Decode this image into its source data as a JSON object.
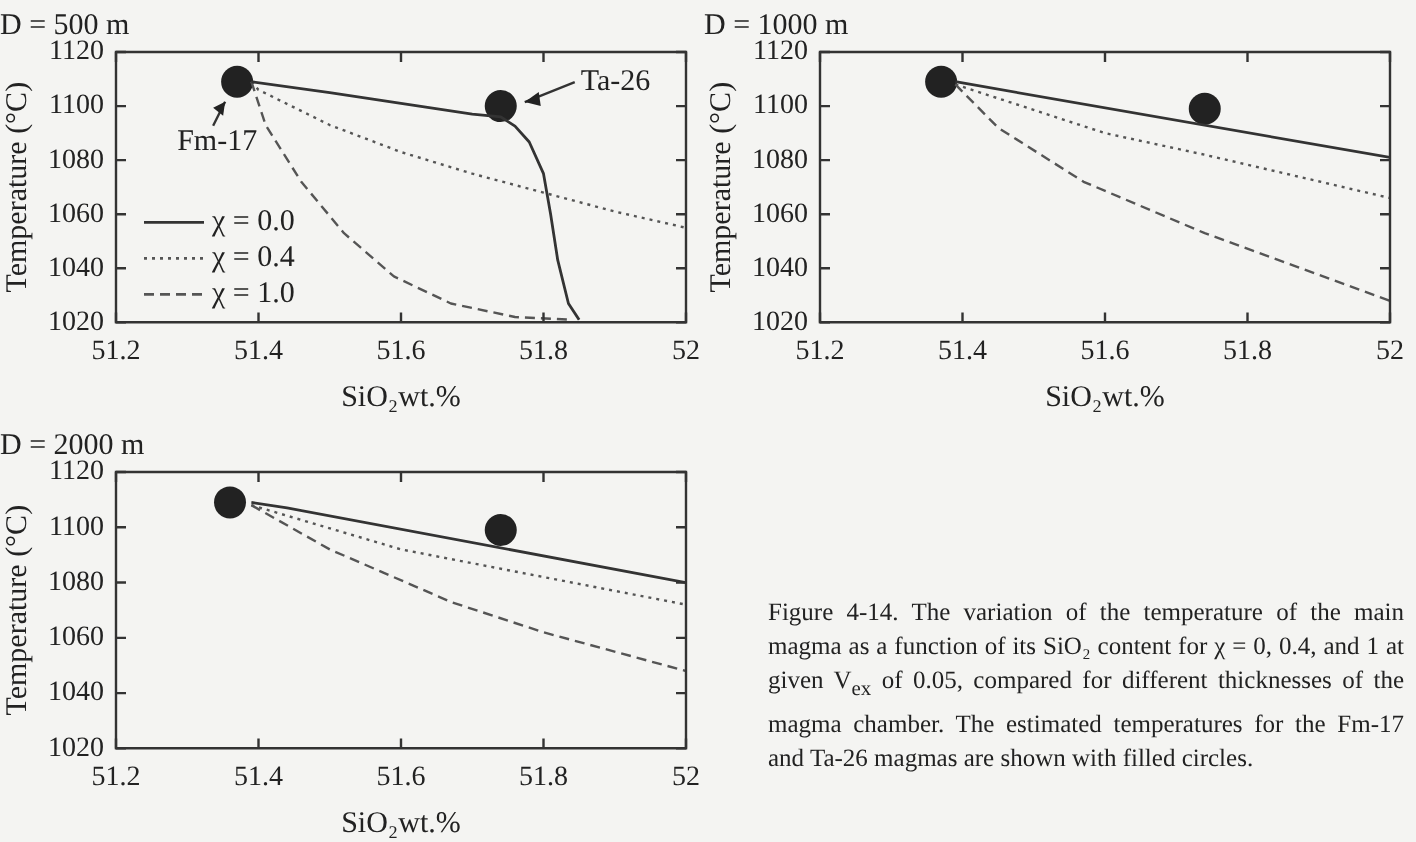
{
  "chart_data": [
    {
      "type": "line",
      "title": "D = 500 m",
      "xlabel": "SiO₂wt.%",
      "ylabel": "Temperature (°C)",
      "xlim": [
        51.2,
        52
      ],
      "xticks": [
        51.2,
        51.4,
        51.6,
        51.8,
        52
      ],
      "ylim": [
        1020,
        1120
      ],
      "yticks": [
        1020,
        1040,
        1060,
        1080,
        1100,
        1120
      ],
      "grid": false,
      "legend": "bottom left",
      "marker": "none",
      "annotations": [
        {
          "text": "Fm-17",
          "x": 51.37,
          "y": 1109
        },
        {
          "text": "Ta-26",
          "x": 51.74,
          "y": 1100
        }
      ],
      "series": [
        {
          "name": "χ = 0.0",
          "color": "#333333",
          "line_style": "solid",
          "x": [
            51.39,
            51.5,
            51.6,
            51.7,
            51.74,
            51.76,
            51.78,
            51.8,
            51.81,
            51.82,
            51.835,
            51.85
          ],
          "values": [
            1109,
            1105,
            1101,
            1097,
            1096,
            1092.6,
            1086.7,
            1075,
            1060,
            1043,
            1027,
            1021
          ]
        },
        {
          "name": "χ = 0.4",
          "color": "#555555",
          "line_style": "dotted",
          "x": [
            51.39,
            51.4,
            51.5,
            51.6,
            51.7,
            51.8,
            51.9,
            52
          ],
          "values": [
            1109,
            1106,
            1093,
            1083,
            1075,
            1068,
            1061,
            1055
          ]
        },
        {
          "name": "χ = 1.0",
          "color": "#555555",
          "line_style": "dashed",
          "x": [
            51.39,
            51.41,
            51.46,
            51.52,
            51.59,
            51.67,
            51.76,
            51.84
          ],
          "values": [
            1109,
            1093,
            1072,
            1053,
            1037,
            1027,
            1022,
            1021
          ]
        },
        {
          "type": "scatter",
          "color": "#222222",
          "marker": "circle",
          "x": [
            51.37,
            51.74
          ],
          "values": [
            1109,
            1100
          ]
        }
      ]
    },
    {
      "type": "line",
      "title": "D = 1000 m",
      "xlabel": "SiO₂wt.%",
      "ylabel": "Temperature (°C)",
      "xlim": [
        51.2,
        52
      ],
      "xticks": [
        51.2,
        51.4,
        51.6,
        51.8,
        52
      ],
      "ylim": [
        1020,
        1120
      ],
      "yticks": [
        1020,
        1040,
        1060,
        1080,
        1100,
        1120
      ],
      "grid": false,
      "marker": "none",
      "series": [
        {
          "color": "#333333",
          "line_style": "solid",
          "x": [
            51.39,
            52
          ],
          "values": [
            1109,
            1081
          ]
        },
        {
          "color": "#555555",
          "line_style": "dotted",
          "x": [
            51.39,
            51.6,
            51.74,
            52
          ],
          "values": [
            1108,
            1090,
            1082,
            1066
          ]
        },
        {
          "color": "#555555",
          "line_style": "dashed",
          "x": [
            51.39,
            51.45,
            51.57,
            51.74,
            52
          ],
          "values": [
            1108,
            1092,
            1072,
            1053,
            1028
          ]
        },
        {
          "type": "scatter",
          "color": "#222222",
          "marker": "circle",
          "x": [
            51.37,
            51.74
          ],
          "values": [
            1109,
            1099
          ]
        }
      ]
    },
    {
      "type": "line",
      "title": "D = 2000 m",
      "xlabel": "SiO₂wt.%",
      "ylabel": "Temperature (°C)",
      "xlim": [
        51.2,
        52
      ],
      "xticks": [
        51.2,
        51.4,
        51.6,
        51.8,
        52
      ],
      "ylim": [
        1020,
        1120
      ],
      "yticks": [
        1020,
        1040,
        1060,
        1080,
        1100,
        1120
      ],
      "grid": false,
      "marker": "none",
      "annotations": [
        "Figure 4-14. The variation of the temperature of the main magma as a function of its SiO₂ content for χ = 0, 0.4, and 1 at given V$_{ex}$ of 0.05, compared for different thicknesses of the magma chamber. The estimated temperatures for the Fm-17 and Ta-26 magmas are shown with filled circles."
      ],
      "series": [
        {
          "color": "#333333",
          "line_style": "solid",
          "x": [
            51.39,
            51.44,
            52
          ],
          "values": [
            1109,
            1107,
            1080
          ]
        },
        {
          "color": "#555555",
          "line_style": "dotted",
          "x": [
            51.39,
            51.6,
            51.8,
            52
          ],
          "values": [
            1108,
            1092,
            1082,
            1072
          ]
        },
        {
          "color": "#555555",
          "line_style": "dashed",
          "x": [
            51.39,
            51.5,
            51.67,
            51.8,
            52
          ],
          "values": [
            1108,
            1092,
            1073,
            1062,
            1048
          ]
        },
        {
          "type": "scatter",
          "color": "#222222",
          "marker": "circle",
          "x": [
            51.36,
            51.74
          ],
          "values": [
            1109,
            1099
          ]
        }
      ]
    }
  ]
}
